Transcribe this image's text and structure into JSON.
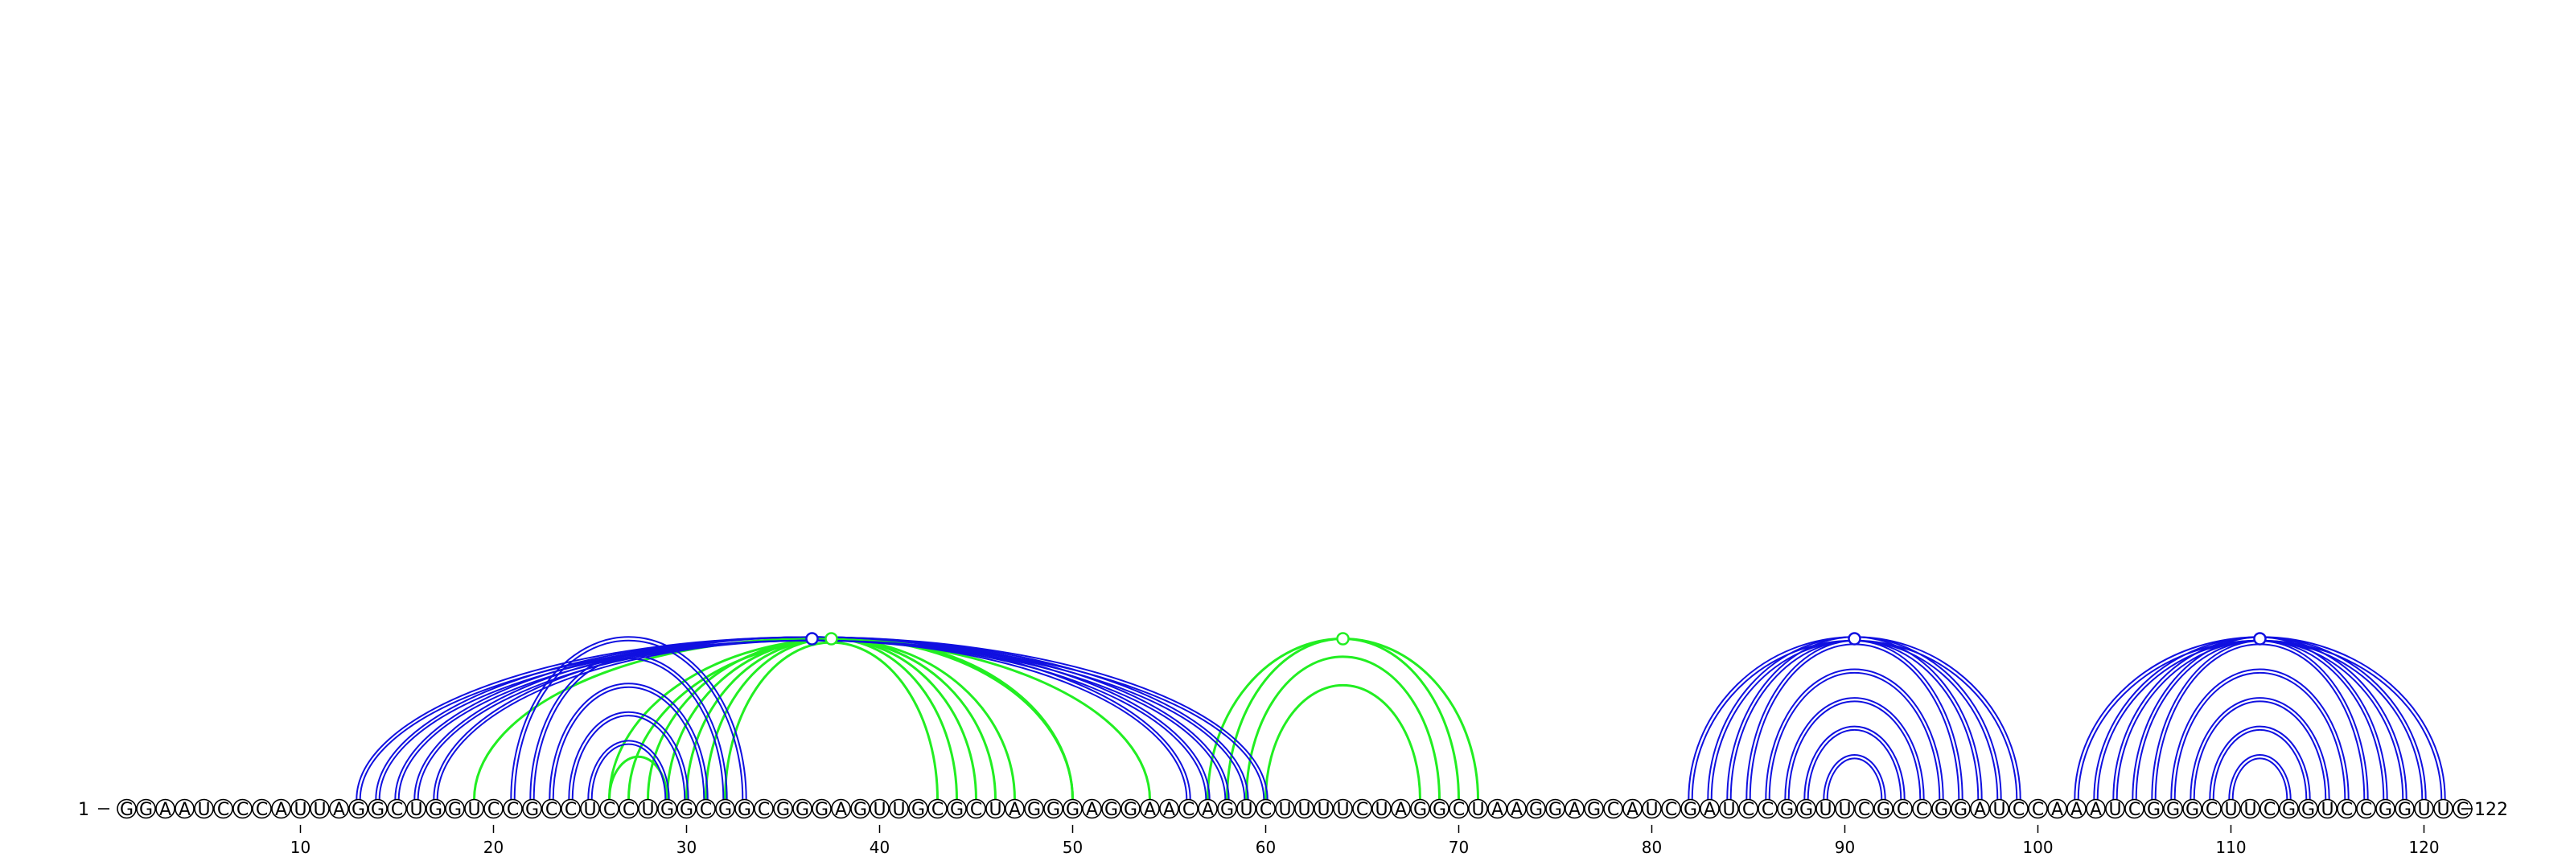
{
  "sequence": "GGAAUCCCAUUAGGCUGGUCCGCCUCCUGGCGGCGGGAGUUGCGCUAGGGAGGAACAGUCUUUUCUAGGCUAAGGAGCAUCGAUCCGGUUCGCCGGAUCCAAAUCGGGCUUCGGUCCGGUUC",
  "start_label": "1",
  "end_label": "122",
  "ticks": [
    "10",
    "20",
    "30",
    "40",
    "50",
    "60",
    "70",
    "80",
    "90",
    "100",
    "110",
    "120"
  ],
  "colors": {
    "blue": "#1010e0",
    "green": "#22ee22"
  },
  "blue_pairs": [
    [
      13,
      60
    ],
    [
      14,
      59
    ],
    [
      15,
      58
    ],
    [
      16,
      57
    ],
    [
      17,
      56
    ],
    [
      21,
      33
    ],
    [
      22,
      32
    ],
    [
      23,
      31
    ],
    [
      24,
      30
    ],
    [
      25,
      29
    ],
    [
      82,
      99
    ],
    [
      83,
      98
    ],
    [
      84,
      97
    ],
    [
      85,
      96
    ],
    [
      86,
      95
    ],
    [
      87,
      94
    ],
    [
      88,
      93
    ],
    [
      89,
      92
    ],
    [
      102,
      121
    ],
    [
      103,
      120
    ],
    [
      104,
      119
    ],
    [
      105,
      118
    ],
    [
      106,
      117
    ],
    [
      107,
      116
    ],
    [
      108,
      115
    ],
    [
      109,
      114
    ],
    [
      110,
      113
    ]
  ],
  "green_pairs": [
    [
      19,
      54
    ],
    [
      26,
      50
    ],
    [
      27,
      50
    ],
    [
      28,
      47
    ],
    [
      29,
      46
    ],
    [
      30,
      45
    ],
    [
      31,
      44
    ],
    [
      32,
      43
    ],
    [
      57,
      71
    ],
    [
      58,
      70
    ],
    [
      59,
      69
    ],
    [
      60,
      68
    ],
    [
      26,
      29
    ]
  ],
  "markers": [
    {
      "at": 36.5,
      "color": "blue"
    },
    {
      "at": 37.5,
      "color": "green"
    },
    {
      "at": 64.0,
      "color": "green"
    },
    {
      "at": 90.5,
      "color": "blue"
    },
    {
      "at": 111.5,
      "color": "blue"
    }
  ]
}
